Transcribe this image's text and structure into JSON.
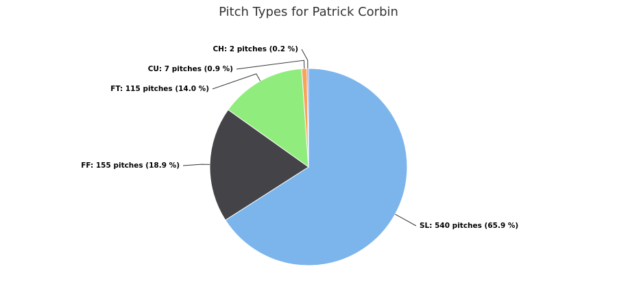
{
  "chart_data": {
    "type": "pie",
    "title": "Pitch Types for Patrick Corbin",
    "values": [
      540,
      155,
      115,
      7,
      2
    ],
    "value_labels": [
      "SL: 540 pitches (65.9 %)",
      "FF: 155 pitches (18.9 %)",
      "FT: 115 pitches (14.0 %)",
      "CU: 7 pitches (0.9 %)",
      "CH: 2 pitches (0.2 %)"
    ],
    "colors": [
      "#7cb5ec",
      "#434348",
      "#90ed7d",
      "#f7a35c",
      "#8085e9"
    ]
  }
}
